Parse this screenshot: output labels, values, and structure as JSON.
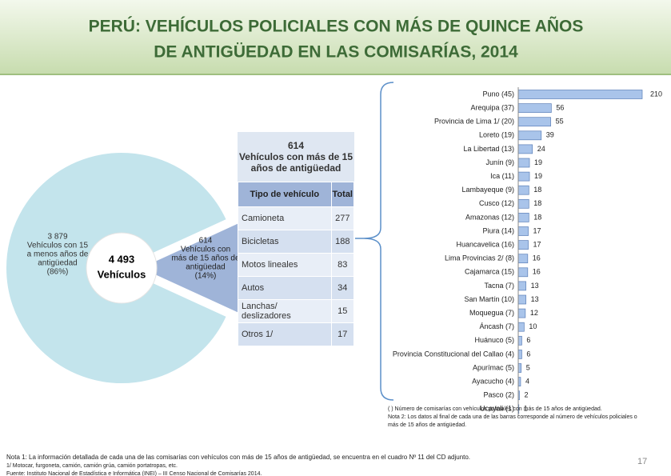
{
  "title": [
    "PERÚ: VEHÍCULOS POLICIALES CON MÁS DE QUINCE AÑOS",
    "DE ANTIGÜEDAD EN LAS COMISARÍAS, 2014"
  ],
  "chart_data": [
    {
      "type": "pie",
      "values": [
        3879,
        614
      ],
      "value_labels": [
        "3 879",
        "614"
      ],
      "slice_texts": [
        [
          "Vehículos con 15",
          "a menos años de",
          "antigüedad",
          "(86%)"
        ],
        [
          "Vehículos con",
          "más de 15 años de",
          "antigüedad",
          "(14%)"
        ]
      ],
      "colors": [
        "#c3e4ec",
        "#9fb4d8"
      ],
      "center_label": [
        "4 493",
        "Vehículos"
      ]
    },
    {
      "type": "bar",
      "orientation": "horizontal",
      "categories": [
        "Puno (45)",
        "Arequipa (37)",
        "Provincia de Lima 1/ (20)",
        "Loreto (19)",
        "La Libertad (13)",
        "Junín (9)",
        "Ica (11)",
        "Lambayeque (9)",
        "Cusco (12)",
        "Amazonas (12)",
        "Piura (14)",
        "Huancavelica (16)",
        "Lima Provincias 2/ (8)",
        "Cajamarca (15)",
        "Tacna (7)",
        "San Martín (10)",
        "Moquegua (7)",
        "Áncash (7)",
        "Huánuco (5)",
        "Provincia Constitucional del Callao (4)",
        "Apurímac (5)",
        "Ayacucho (4)",
        "Pasco (2)",
        "Ucayali (1)"
      ],
      "values": [
        210,
        56,
        55,
        39,
        24,
        19,
        19,
        18,
        18,
        18,
        17,
        17,
        16,
        16,
        13,
        13,
        12,
        10,
        6,
        6,
        5,
        4,
        2,
        1
      ],
      "color": "#a9c4ea",
      "xlim": [
        0,
        210
      ]
    }
  ],
  "table": {
    "caption": [
      "614",
      "Vehículos con más de 15",
      "años de antigüedad"
    ],
    "header": [
      "Tipo de vehículo",
      "Total"
    ],
    "rows": [
      [
        "Camioneta",
        277
      ],
      [
        "Bicicletas",
        188
      ],
      [
        "Motos lineales",
        83
      ],
      [
        "Autos",
        34
      ],
      [
        "Lanchas/ deslizadores",
        15
      ],
      [
        "Otros 1/",
        17
      ]
    ]
  },
  "bar_notes": [
    "( ) Número de comisarías con vehículos policiales con más de 15 años de antigüedad.",
    "Nota 2: Los datos al final de cada una de las barras corresponde al número de vehículos policiales o",
    "más de 15 años de antigüedad."
  ],
  "footer": [
    "Nota 1: La información detallada de cada una de las comisarías con vehículos con más de 15 años de antigüedad, se encuentra en el cuadro Nº 11 del  CD adjunto.",
    "1/ Motocar, furgoneta, camión, camión grúa, camión portatropas, etc.",
    "Fuente: Instituto Nacional de Estadística e Informática (INEI) – III Censo Nacional de Comisarías 2014."
  ],
  "page_number": "17"
}
